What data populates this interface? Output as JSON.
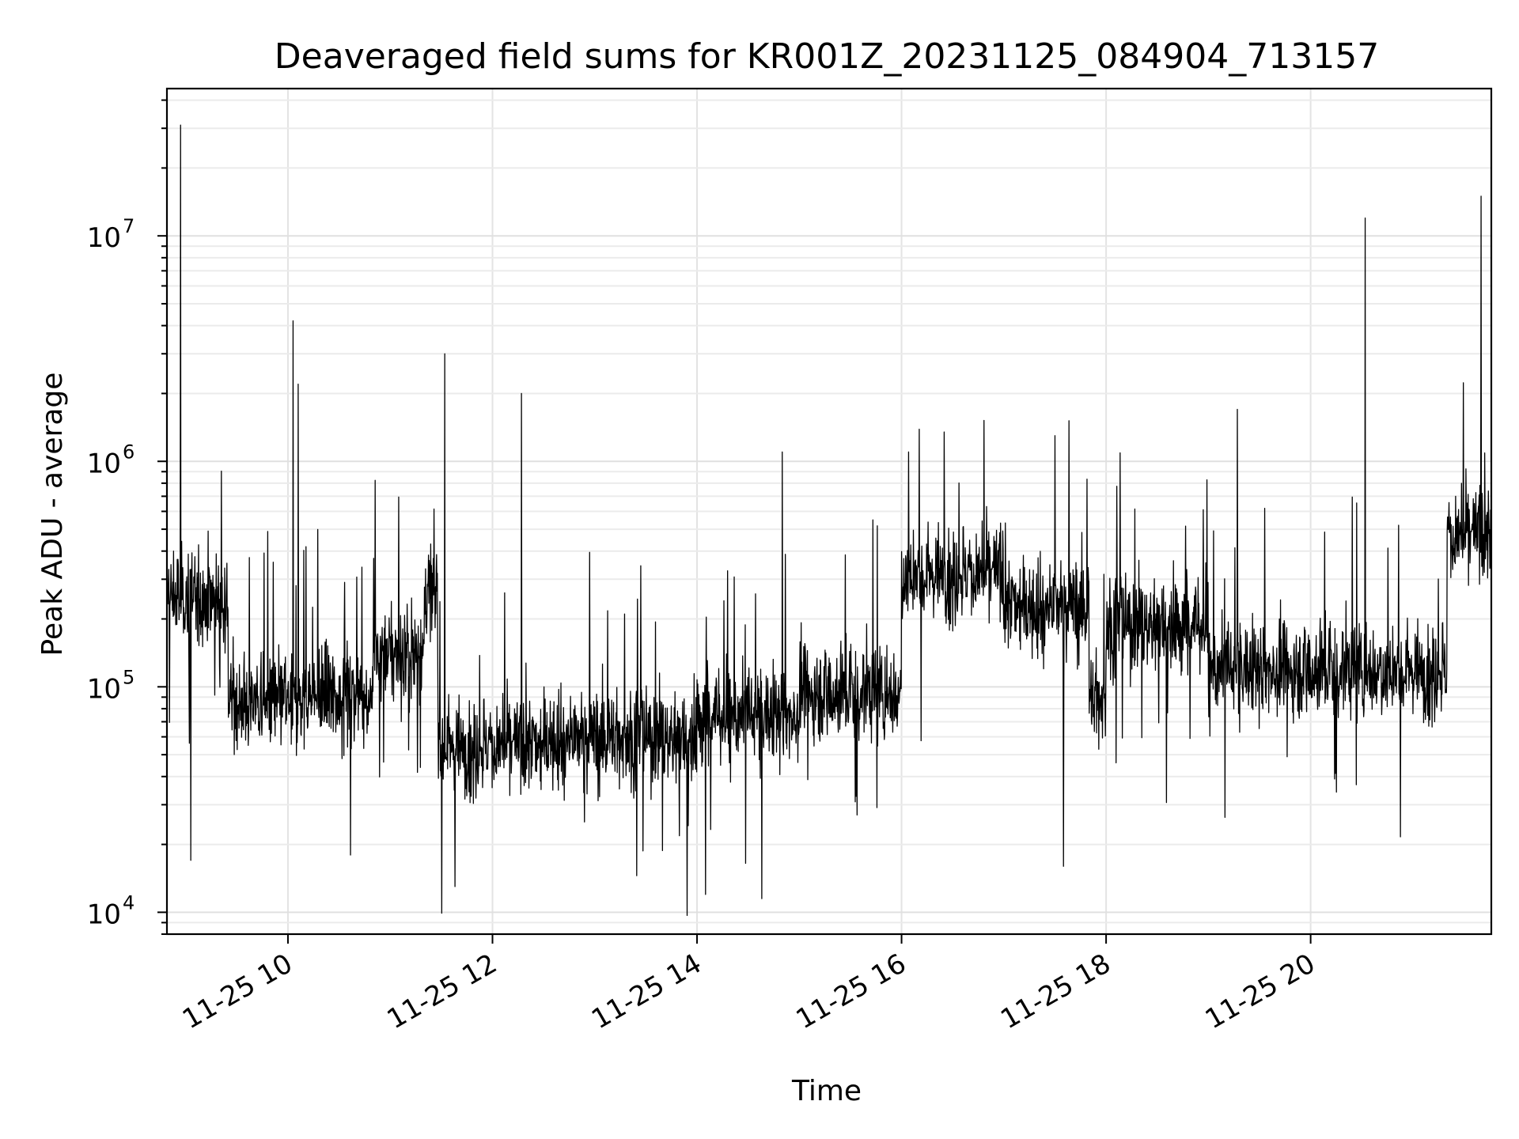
{
  "chart_data": {
    "type": "line",
    "title": "Deaveraged field sums for KR001Z_20231125_084904_713157",
    "xlabel": "Time",
    "ylabel": "Peak ADU - average",
    "x_axis": {
      "type": "time",
      "range": [
        "2023-11-25 08:49",
        "2023-11-25 21:46"
      ],
      "ticks": [
        {
          "value": "2023-11-25 10:00",
          "label": "11-25 10"
        },
        {
          "value": "2023-11-25 12:00",
          "label": "11-25 12"
        },
        {
          "value": "2023-11-25 14:00",
          "label": "11-25 14"
        },
        {
          "value": "2023-11-25 16:00",
          "label": "11-25 16"
        },
        {
          "value": "2023-11-25 18:00",
          "label": "11-25 18"
        },
        {
          "value": "2023-11-25 20:00",
          "label": "11-25 20"
        }
      ]
    },
    "y_axis": {
      "scale": "log",
      "range": [
        8000,
        45000000
      ],
      "ticks": [
        {
          "value": 10000,
          "base": "10",
          "exp": "4"
        },
        {
          "value": 100000,
          "base": "10",
          "exp": "5"
        },
        {
          "value": 1000000,
          "base": "10",
          "exp": "6"
        },
        {
          "value": 10000000,
          "base": "10",
          "exp": "7"
        }
      ]
    },
    "grid": true,
    "line_color": "#000000",
    "segments": [
      {
        "start": "2023-11-25 08:49",
        "end": "2023-11-25 09:25",
        "level": 250000
      },
      {
        "start": "2023-11-25 09:25",
        "end": "2023-11-25 10:10",
        "level": 85000
      },
      {
        "start": "2023-11-25 10:10",
        "end": "2023-11-25 10:50",
        "level": 90000
      },
      {
        "start": "2023-11-25 10:50",
        "end": "2023-11-25 11:20",
        "level": 140000
      },
      {
        "start": "2023-11-25 11:20",
        "end": "2023-11-25 11:28",
        "level": 260000
      },
      {
        "start": "2023-11-25 11:28",
        "end": "2023-11-25 12:30",
        "level": 55000
      },
      {
        "start": "2023-11-25 12:30",
        "end": "2023-11-25 14:00",
        "level": 60000
      },
      {
        "start": "2023-11-25 14:00",
        "end": "2023-11-25 15:00",
        "level": 75000
      },
      {
        "start": "2023-11-25 15:00",
        "end": "2023-11-25 16:00",
        "level": 95000
      },
      {
        "start": "2023-11-25 16:00",
        "end": "2023-11-25 17:00",
        "level": 320000
      },
      {
        "start": "2023-11-25 17:00",
        "end": "2023-11-25 17:50",
        "level": 230000
      },
      {
        "start": "2023-11-25 17:50",
        "end": "2023-11-25 18:00",
        "level": 90000
      },
      {
        "start": "2023-11-25 18:00",
        "end": "2023-11-25 19:00",
        "level": 190000
      },
      {
        "start": "2023-11-25 19:00",
        "end": "2023-11-25 19:40",
        "level": 120000
      },
      {
        "start": "2023-11-25 19:40",
        "end": "2023-11-25 21:20",
        "level": 120000
      },
      {
        "start": "2023-11-25 21:20",
        "end": "2023-11-25 21:46",
        "level": 470000
      }
    ],
    "spikes": [
      {
        "t": "2023-11-25 08:57",
        "value": 31000000
      },
      {
        "t": "2023-11-25 10:03",
        "value": 4200000
      },
      {
        "t": "2023-11-25 10:06",
        "value": 2200000
      },
      {
        "t": "2023-11-25 11:32",
        "value": 3000000
      },
      {
        "t": "2023-11-25 12:17",
        "value": 2000000
      },
      {
        "t": "2023-11-25 14:50",
        "value": 1100000
      },
      {
        "t": "2023-11-25 16:25",
        "value": 1350000
      },
      {
        "t": "2023-11-25 17:30",
        "value": 1300000
      },
      {
        "t": "2023-11-25 19:17",
        "value": 1700000
      },
      {
        "t": "2023-11-25 20:32",
        "value": 12000000
      },
      {
        "t": "2023-11-25 21:40",
        "value": 15000000
      }
    ],
    "dips": [
      {
        "t": "2023-11-25 09:03",
        "value": 17000
      },
      {
        "t": "2023-11-25 11:38",
        "value": 13000
      },
      {
        "t": "2023-11-25 14:05",
        "value": 12000
      },
      {
        "t": "2023-11-25 14:38",
        "value": 11500
      },
      {
        "t": "2023-11-25 17:35",
        "value": 16000
      }
    ]
  }
}
